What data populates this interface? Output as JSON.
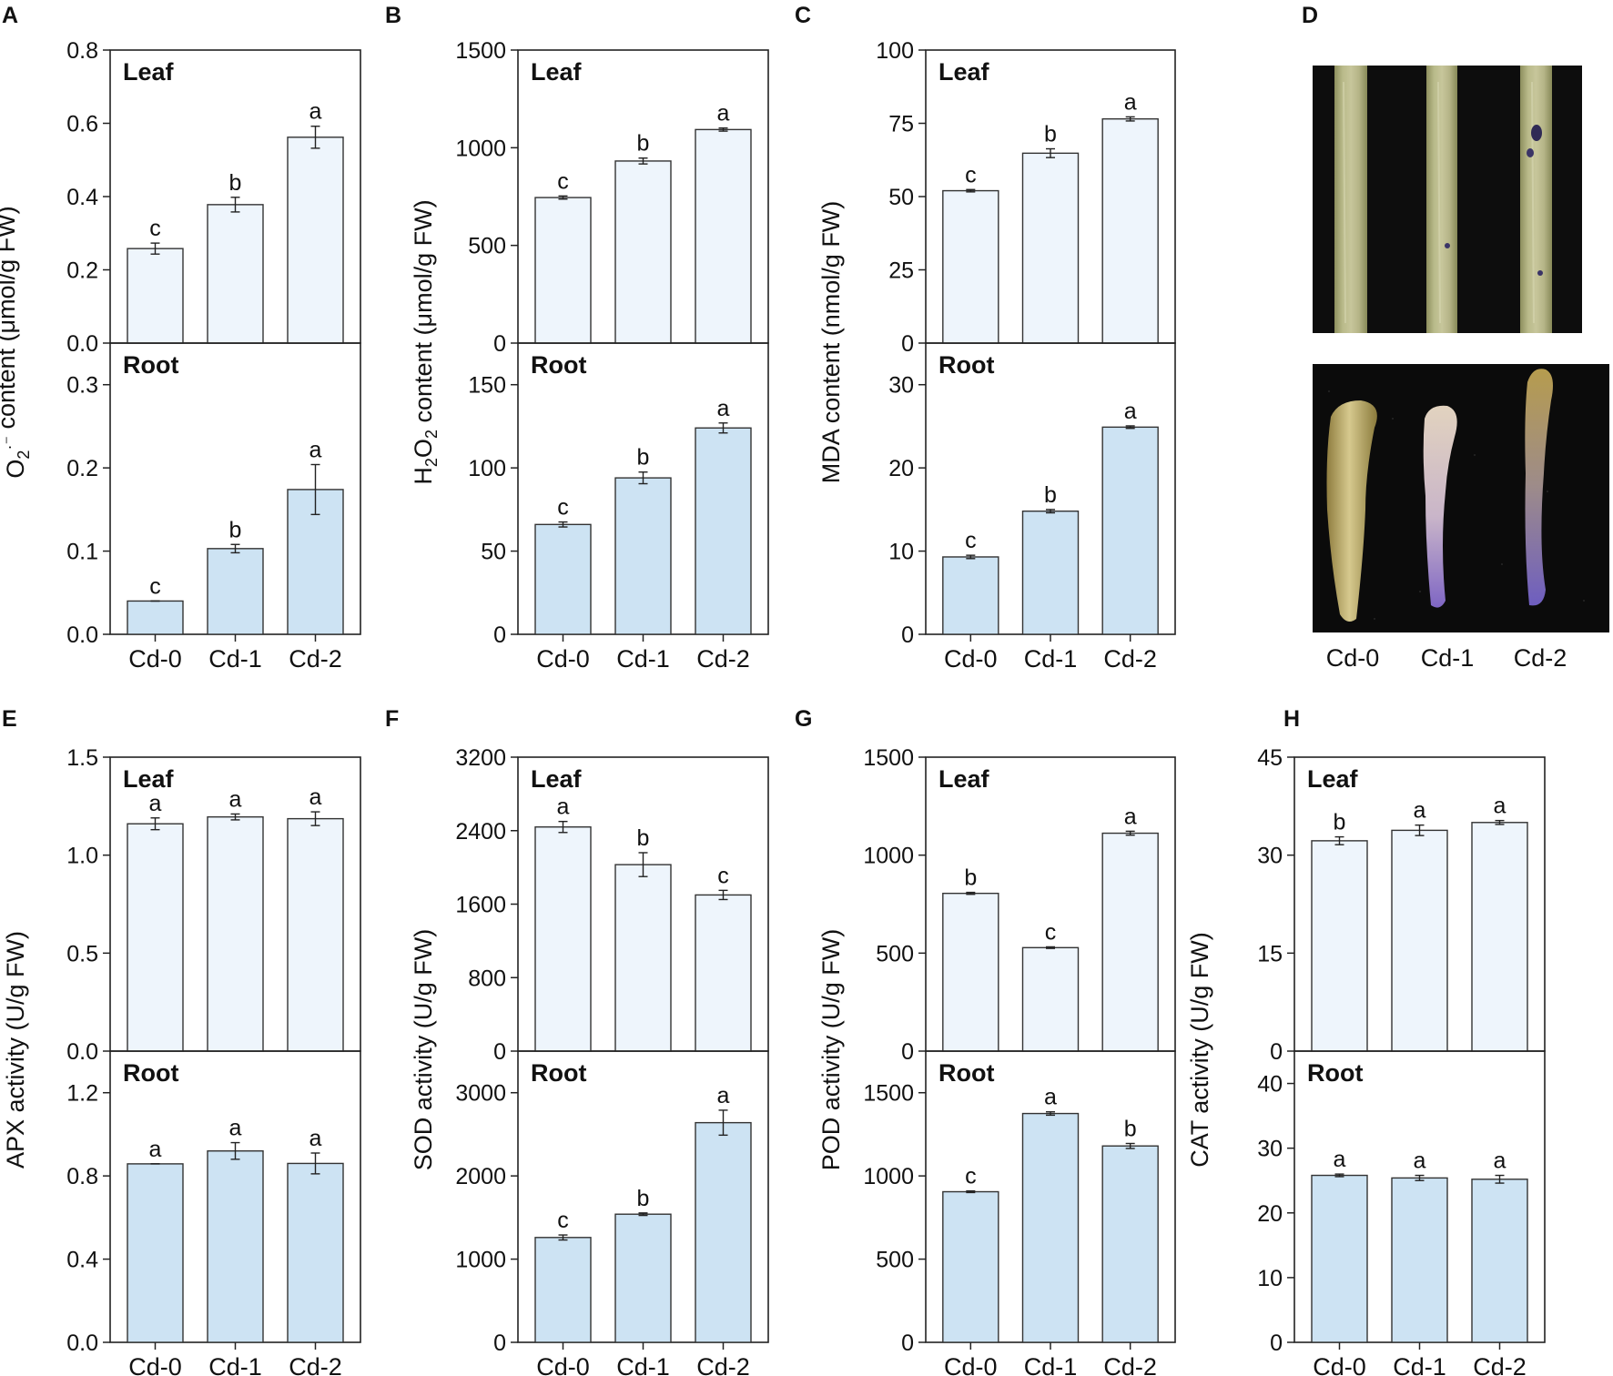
{
  "figure": {
    "categories": [
      "Cd-0",
      "Cd-1",
      "Cd-2"
    ],
    "tissues": {
      "top": "Leaf",
      "bottom": "Root"
    },
    "colors": {
      "leaf_bar": "#eef5fc",
      "root_bar": "#cde3f3",
      "axis": "#222222",
      "photo_bg": "#0d0d0d"
    }
  },
  "chart_data": [
    {
      "panel": "A",
      "type": "bar",
      "ylabel": {
        "base": "O",
        "sub": "2",
        "sup": "·⁻",
        "rest": " content (μmol/g FW)"
      },
      "categories": [
        "Cd-0",
        "Cd-1",
        "Cd-2"
      ],
      "leaf": {
        "label": "Leaf",
        "ylim": [
          0,
          0.8
        ],
        "ticks": [
          "0.0",
          "0.2",
          "0.4",
          "0.6",
          "0.8"
        ],
        "values": [
          0.258,
          0.378,
          0.562
        ],
        "errors": [
          0.015,
          0.02,
          0.03
        ],
        "letters": [
          "c",
          "b",
          "a"
        ]
      },
      "root": {
        "label": "Root",
        "ylim": [
          0,
          0.35
        ],
        "ticks": [
          "0.0",
          "0.1",
          "0.2",
          "0.3"
        ],
        "values": [
          0.04,
          0.103,
          0.174
        ],
        "errors": [
          0.0,
          0.005,
          0.03
        ],
        "letters": [
          "c",
          "b",
          "a"
        ]
      }
    },
    {
      "panel": "B",
      "type": "bar",
      "ylabel": {
        "base": "H",
        "sub": "2",
        "mid": "O",
        "sub2": "2",
        "rest": " content (μmol/g FW)"
      },
      "categories": [
        "Cd-0",
        "Cd-1",
        "Cd-2"
      ],
      "leaf": {
        "label": "Leaf",
        "ylim": [
          0,
          1500
        ],
        "ticks": [
          "0",
          "500",
          "1000",
          "1500"
        ],
        "values": [
          745,
          932,
          1093
        ],
        "errors": [
          8,
          15,
          8
        ],
        "letters": [
          "c",
          "b",
          "a"
        ]
      },
      "root": {
        "label": "Root",
        "ylim": [
          0,
          175
        ],
        "ticks": [
          "0",
          "50",
          "100",
          "150"
        ],
        "values": [
          66,
          94,
          124
        ],
        "errors": [
          1.5,
          3.5,
          3
        ],
        "letters": [
          "c",
          "b",
          "a"
        ]
      }
    },
    {
      "panel": "C",
      "type": "bar",
      "ylabel": {
        "rest": "MDA content (nmol/g FW)"
      },
      "categories": [
        "Cd-0",
        "Cd-1",
        "Cd-2"
      ],
      "leaf": {
        "label": "Leaf",
        "ylim": [
          0,
          100
        ],
        "ticks": [
          "0",
          "25",
          "50",
          "75",
          "100"
        ],
        "values": [
          52,
          64.8,
          76.5
        ],
        "errors": [
          0.4,
          1.5,
          0.7
        ],
        "letters": [
          "c",
          "b",
          "a"
        ]
      },
      "root": {
        "label": "Root",
        "ylim": [
          0,
          35
        ],
        "ticks": [
          "0",
          "10",
          "20",
          "30"
        ],
        "values": [
          9.3,
          14.8,
          24.9
        ],
        "errors": [
          0.2,
          0.2,
          0.15
        ],
        "letters": [
          "c",
          "b",
          "a"
        ]
      }
    },
    {
      "panel": "E",
      "type": "bar",
      "ylabel": {
        "rest": "APX activity (U/g FW)"
      },
      "categories": [
        "Cd-0",
        "Cd-1",
        "Cd-2"
      ],
      "leaf": {
        "label": "Leaf",
        "ylim": [
          0,
          1.5
        ],
        "ticks": [
          "0.0",
          "0.5",
          "1.0",
          "1.5"
        ],
        "values": [
          1.16,
          1.195,
          1.186
        ],
        "errors": [
          0.03,
          0.015,
          0.035
        ],
        "letters": [
          "a",
          "a",
          "a"
        ]
      },
      "root": {
        "label": "Root",
        "ylim": [
          0,
          1.4
        ],
        "ticks": [
          "0.0",
          "0.4",
          "0.8",
          "1.2"
        ],
        "values": [
          0.858,
          0.92,
          0.86
        ],
        "errors": [
          0.0,
          0.04,
          0.05
        ],
        "letters": [
          "a",
          "a",
          "a"
        ]
      }
    },
    {
      "panel": "F",
      "type": "bar",
      "ylabel": {
        "rest": "SOD activity (U/g FW)"
      },
      "categories": [
        "Cd-0",
        "Cd-1",
        "Cd-2"
      ],
      "leaf": {
        "label": "Leaf",
        "ylim": [
          0,
          3200
        ],
        "ticks": [
          "0",
          "800",
          "1600",
          "2400",
          "3200"
        ],
        "values": [
          2440,
          2030,
          1700
        ],
        "errors": [
          60,
          130,
          50
        ],
        "letters": [
          "a",
          "b",
          "c"
        ]
      },
      "root": {
        "label": "Root",
        "ylim": [
          0,
          3500
        ],
        "ticks": [
          "0",
          "1000",
          "2000",
          "3000"
        ],
        "values": [
          1260,
          1540,
          2640
        ],
        "errors": [
          30,
          15,
          150
        ],
        "letters": [
          "c",
          "b",
          "a"
        ]
      }
    },
    {
      "panel": "G",
      "type": "bar",
      "ylabel": {
        "rest": "POD activity (U/g FW)"
      },
      "categories": [
        "Cd-0",
        "Cd-1",
        "Cd-2"
      ],
      "leaf": {
        "label": "Leaf",
        "ylim": [
          0,
          1500
        ],
        "ticks": [
          "0",
          "500",
          "1000",
          "1500"
        ],
        "values": [
          805,
          528,
          1112
        ],
        "errors": [
          5,
          4,
          10
        ],
        "letters": [
          "b",
          "c",
          "a"
        ]
      },
      "root": {
        "label": "Root",
        "ylim": [
          0,
          1750
        ],
        "ticks": [
          "0",
          "500",
          "1000",
          "1500"
        ],
        "values": [
          905,
          1375,
          1180
        ],
        "errors": [
          5,
          10,
          15
        ],
        "letters": [
          "c",
          "a",
          "b"
        ]
      }
    },
    {
      "panel": "H",
      "type": "bar",
      "ylabel": {
        "rest": "CAT activity (U/g FW)"
      },
      "categories": [
        "Cd-0",
        "Cd-1",
        "Cd-2"
      ],
      "leaf": {
        "label": "Leaf",
        "ylim": [
          0,
          45
        ],
        "ticks": [
          "0",
          "15",
          "30",
          "45"
        ],
        "values": [
          32.2,
          33.8,
          35
        ],
        "errors": [
          0.6,
          0.8,
          0.3
        ],
        "letters": [
          "b",
          "a",
          "a"
        ]
      },
      "root": {
        "label": "Root",
        "ylim": [
          0,
          45
        ],
        "ticks": [
          "0",
          "10",
          "20",
          "30",
          "40"
        ],
        "values": [
          25.8,
          25.4,
          25.2
        ],
        "errors": [
          0.2,
          0.4,
          0.6
        ],
        "letters": [
          "a",
          "a",
          "a"
        ]
      }
    }
  ],
  "photo_panel": {
    "panel": "D",
    "categories": [
      "Cd-0",
      "Cd-1",
      "Cd-2"
    ],
    "top_description": "leaf",
    "bottom_description": "root"
  }
}
